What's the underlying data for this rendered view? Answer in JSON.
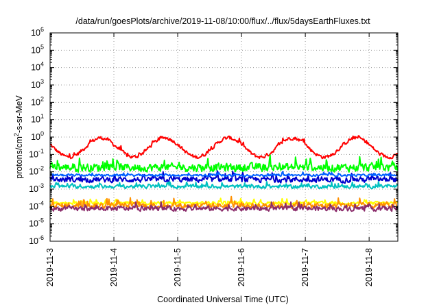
{
  "chart_data": {
    "type": "line",
    "title": "/data/run/goesPlots/archive/2019-11-08/10:00/flux/../flux/5daysEarthFluxes.txt",
    "xlabel": "Coordinated Universal Time (UTC)",
    "ylabel_parts": {
      "base": "protons/cm",
      "exp": "2",
      "rest": "-s-sr-MeV"
    },
    "y_scale": "log",
    "ylim_exponents": [
      -6,
      6
    ],
    "y_tick_base": "10",
    "y_tick_exponents": [
      "-6",
      "-5",
      "-4",
      "-3",
      "-2",
      "-1",
      "0",
      "1",
      "2",
      "3",
      "4",
      "5",
      "6"
    ],
    "xlim_days": [
      "2019-11-03",
      "2019-11-08.45"
    ],
    "x_tick_labels": [
      "2019-11-3",
      "2019-11-4",
      "2019-11-5",
      "2019-11-6",
      "2019-11-7",
      "2019-11-8"
    ],
    "grid": "dotted",
    "series": [
      {
        "color": "#ff0000",
        "level_log10": -0.6,
        "amp": 0.55,
        "noise": 0.14,
        "period_days": 1,
        "phase": 0.55
      },
      {
        "color": "#00ff00",
        "level_log10": -1.75,
        "amp": 0.0,
        "noise": 0.32,
        "period_days": 1,
        "phase": 0
      },
      {
        "color": "#0000cc",
        "level_log10": -2.45,
        "amp": 0.0,
        "noise": 0.22,
        "period_days": 1,
        "phase": 0
      },
      {
        "color": "#0060ff",
        "level_log10": -2.2,
        "amp": 0.0,
        "noise": 0.08,
        "period_days": 1,
        "phase": 0
      },
      {
        "color": "#00c0c0",
        "level_log10": -2.85,
        "amp": 0.0,
        "noise": 0.14,
        "period_days": 1,
        "phase": 0
      },
      {
        "color": "#ffff00",
        "level_log10": -3.8,
        "amp": 0.0,
        "noise": 0.12,
        "period_days": 1,
        "phase": 0
      },
      {
        "color": "#ff9000",
        "level_log10": -3.95,
        "amp": 0.0,
        "noise": 0.22,
        "period_days": 1,
        "phase": 0
      },
      {
        "color": "#8b2c6b",
        "level_log10": -4.12,
        "amp": 0.0,
        "noise": 0.18,
        "period_days": 1,
        "phase": 0
      }
    ]
  }
}
